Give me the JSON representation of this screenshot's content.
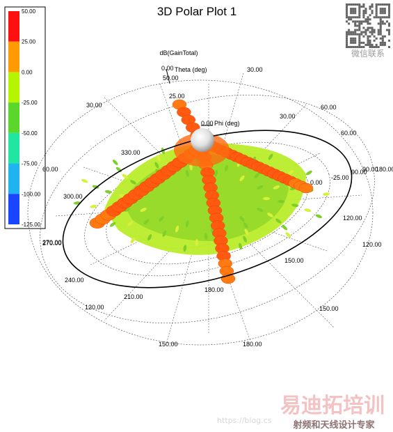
{
  "chart_data": {
    "type": "3d-polar-radiation-pattern",
    "title": "3D Polar Plot 1",
    "quantity_label": "dB(GainTotal)",
    "colorbar": {
      "ticks": [
        "50.00",
        "25.00",
        "0.00",
        "-25.00",
        "-50.00",
        "-75.00",
        "-100.00",
        "-125.00"
      ],
      "levels": [
        50,
        25,
        0,
        -25,
        -50,
        -75,
        -100,
        -125
      ],
      "colors": [
        "#ff1010",
        "#ff9a00",
        "#b5f500",
        "#5ad72a",
        "#1fe6a0",
        "#1fb3f0",
        "#1a45ff"
      ]
    },
    "theta_axis_label": "Theta (deg)",
    "phi_axis_label": "Phi (deg)",
    "theta_zero_label": "0.00",
    "phi_zero_label": "0.00",
    "radial_ticks": [
      "50.00",
      "25.00",
      "0.00",
      "-25.00"
    ],
    "theta_ticks": [
      "30.00",
      "60.00",
      "90.00",
      "120.00",
      "150.00",
      "180.00"
    ],
    "phi_ticks": [
      "30.00",
      "60.00",
      "90.00",
      "120.00",
      "150.00",
      "180.00",
      "210.00",
      "240.00",
      "270.00",
      "300.00",
      "330.00"
    ],
    "extra_labels": [
      "60.00",
      "180.00",
      "120.00",
      "150.00",
      "30.00"
    ],
    "overlap_label": "270.00",
    "grid": true
  },
  "watermark": {
    "qr_caption": "微信联系",
    "brand": "易迪拓培训",
    "brand_sub": "射频和天线设计专家",
    "url_text": "https://blog.cs"
  }
}
